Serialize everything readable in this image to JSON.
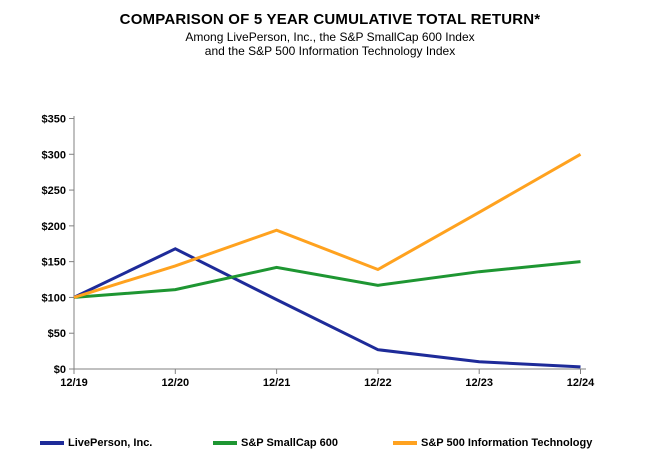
{
  "title": "COMPARISON OF 5 YEAR CUMULATIVE TOTAL RETURN*",
  "subtitle_line1": "Among LivePerson, Inc., the S&P SmallCap 600 Index",
  "subtitle_line2": "and the S&P 500 Information Technology Index",
  "colors": {
    "axis": "#808080",
    "text": "#000000",
    "background": "#ffffff"
  },
  "chart_data": {
    "type": "line",
    "categories": [
      "12/19",
      "12/20",
      "12/21",
      "12/22",
      "12/23",
      "12/24"
    ],
    "series": [
      {
        "name": "LivePerson, Inc.",
        "color": "#1e2b99",
        "values": [
          100,
          168,
          97,
          27,
          10,
          3
        ]
      },
      {
        "name": "S&P SmallCap 600",
        "color": "#1e9632",
        "values": [
          100,
          111,
          142,
          117,
          136,
          150
        ]
      },
      {
        "name": "S&P 500 Information Technology",
        "color": "#ffa21f",
        "values": [
          100,
          144,
          194,
          139,
          219,
          300
        ]
      }
    ],
    "y_ticks": [
      0,
      50,
      100,
      150,
      200,
      250,
      300,
      350
    ],
    "y_tick_labels": [
      "$0",
      "$50",
      "$100",
      "$150",
      "$200",
      "$250",
      "$300",
      "$350"
    ],
    "ylim": [
      0,
      350
    ],
    "grid": false,
    "legend_position": "bottom"
  }
}
